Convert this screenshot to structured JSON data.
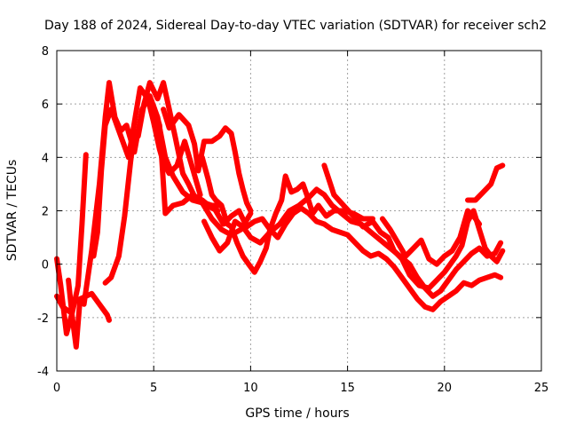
{
  "chart_data": {
    "type": "scatter",
    "title": "Day 188 of 2024, Sidereal Day-to-day VTEC variation (SDTVAR) for receiver sch2",
    "xlabel": "GPS time / hours",
    "ylabel": "SDTVAR / TECUs",
    "xlim": [
      0,
      25
    ],
    "ylim": [
      -4,
      8
    ],
    "xticks": [
      0,
      5,
      10,
      15,
      20,
      25
    ],
    "yticks": [
      -4,
      -2,
      0,
      2,
      4,
      6,
      8
    ],
    "xtick_labels": [
      "0",
      "5",
      "10",
      "15",
      "20",
      "25"
    ],
    "ytick_labels": [
      "-4",
      "-2",
      "0",
      "2",
      "4",
      "6",
      "8"
    ],
    "grid": true,
    "marker": "+",
    "color": "#ff0000",
    "series": [
      {
        "name": "track-1",
        "x": [
          0.0,
          0.3,
          0.7,
          1.0,
          1.4,
          1.8,
          2.2,
          2.5,
          2.7,
          3.0,
          3.3,
          3.6,
          4.0,
          4.4,
          4.8,
          5.2,
          5.6,
          6.0,
          6.5,
          7.0,
          7.5,
          8.0,
          8.5,
          9.0,
          9.5,
          10.0
        ],
        "y": [
          -1.2,
          -1.6,
          -1.8,
          -1.3,
          -1.5,
          0.5,
          3.0,
          5.5,
          6.8,
          5.5,
          5.0,
          5.2,
          4.2,
          5.8,
          6.3,
          5.5,
          4.0,
          3.3,
          2.7,
          2.4,
          2.3,
          1.7,
          1.3,
          1.1,
          1.3,
          1.9
        ]
      },
      {
        "name": "track-2",
        "x": [
          0.0,
          0.2,
          0.5,
          0.8,
          1.1,
          1.3,
          1.5
        ],
        "y": [
          0.2,
          -0.8,
          -2.6,
          -1.8,
          -0.8,
          1.5,
          4.1
        ]
      },
      {
        "name": "track-3",
        "x": [
          0.6,
          0.8,
          1.0,
          1.2,
          1.5,
          1.8,
          2.2,
          2.6,
          2.7
        ],
        "y": [
          -0.6,
          -2.0,
          -3.1,
          -1.3,
          -1.2,
          -1.1,
          -1.5,
          -1.9,
          -2.1
        ]
      },
      {
        "name": "track-4",
        "x": [
          1.9,
          2.1,
          2.3,
          2.5,
          2.8,
          3.1,
          3.4,
          3.7,
          4.0,
          4.3,
          4.7,
          5.0,
          5.3,
          5.5,
          5.8,
          6.2,
          6.6,
          7.0,
          7.4
        ],
        "y": [
          0.3,
          1.2,
          3.5,
          5.2,
          5.8,
          5.2,
          4.6,
          4.0,
          5.3,
          6.6,
          6.2,
          5.3,
          4.3,
          3.8,
          3.4,
          3.7,
          4.6,
          3.6,
          2.6
        ]
      },
      {
        "name": "track-5",
        "x": [
          2.5,
          2.8,
          3.2,
          3.5,
          3.8,
          4.0,
          4.2,
          4.5,
          4.8,
          5.2,
          5.5,
          5.8,
          6.1,
          6.5,
          6.8,
          7.2,
          7.6,
          8.0,
          8.4
        ],
        "y": [
          -0.7,
          -0.5,
          0.3,
          1.8,
          3.8,
          5.0,
          4.8,
          6.0,
          6.8,
          6.2,
          6.8,
          5.8,
          4.8,
          3.4,
          3.0,
          2.4,
          2.3,
          2.2,
          2.2
        ]
      },
      {
        "name": "track-6",
        "x": [
          5.5,
          5.8,
          6.3,
          6.8,
          7.1,
          7.3,
          7.6,
          8.0,
          8.4,
          8.7,
          9.0,
          9.2,
          9.4,
          9.6,
          9.8,
          10.0
        ],
        "y": [
          5.8,
          5.1,
          5.6,
          5.2,
          4.5,
          3.5,
          4.6,
          4.6,
          4.8,
          5.1,
          4.9,
          4.2,
          3.4,
          2.8,
          2.3,
          2.0
        ]
      },
      {
        "name": "track-7",
        "x": [
          5.0,
          5.3,
          5.6,
          6.0,
          6.5,
          7.0,
          7.5,
          8.0,
          8.3
        ],
        "y": [
          5.9,
          5.2,
          1.9,
          2.2,
          2.3,
          2.6,
          2.4,
          2.1,
          2.0
        ]
      },
      {
        "name": "track-8",
        "x": [
          7.5,
          7.8,
          8.0,
          8.2,
          8.5,
          8.8,
          9.0,
          9.3,
          9.6,
          9.9,
          10.2,
          10.5,
          10.8,
          11.0,
          11.3,
          11.6,
          11.8,
          12.1,
          12.4,
          12.7,
          12.9,
          13.2,
          13.5,
          13.9,
          14.3,
          14.8,
          15.3,
          15.8,
          16.3
        ],
        "y": [
          4.0,
          3.2,
          2.6,
          2.4,
          2.2,
          1.5,
          1.4,
          0.8,
          0.3,
          0.0,
          -0.3,
          0.1,
          0.6,
          1.3,
          1.9,
          2.4,
          3.3,
          2.7,
          2.8,
          3.0,
          2.6,
          1.9,
          2.2,
          1.8,
          2.0,
          2.0,
          1.9,
          1.7,
          1.7
        ]
      },
      {
        "name": "track-9",
        "x": [
          7.6,
          8.0,
          8.4,
          8.8,
          9.2,
          9.6,
          10.0,
          10.5,
          11.0,
          11.5,
          12.0,
          12.5,
          13.0,
          13.4,
          13.8,
          14.2,
          14.7,
          15.2,
          15.7,
          16.2,
          16.7,
          17.2,
          17.7,
          18.2,
          18.6,
          19.0,
          19.4,
          19.8,
          20.2,
          20.6,
          21.0,
          21.4,
          21.8,
          22.2,
          22.6,
          22.9
        ],
        "y": [
          1.6,
          1.0,
          0.5,
          0.8,
          1.6,
          1.4,
          1.0,
          0.8,
          1.2,
          1.5,
          2.0,
          2.2,
          2.5,
          2.8,
          2.6,
          2.2,
          1.9,
          1.6,
          1.5,
          1.2,
          0.9,
          0.6,
          0.3,
          0.0,
          -0.5,
          -0.9,
          -1.2,
          -1.0,
          -0.6,
          -0.2,
          0.1,
          0.4,
          0.6,
          0.3,
          0.4,
          0.8
        ]
      },
      {
        "name": "track-10",
        "x": [
          8.2,
          8.6,
          9.0,
          9.4,
          9.8,
          10.2,
          10.6,
          11.0,
          11.4,
          11.8,
          12.2,
          12.6,
          13.0,
          13.4,
          13.8,
          14.2,
          14.6,
          15.0,
          15.4,
          15.8,
          16.2,
          16.6,
          17.0,
          17.4,
          17.8,
          18.2,
          18.6,
          19.0,
          19.4,
          19.8,
          20.2,
          20.6,
          21.0,
          21.4,
          21.8,
          22.2,
          22.6,
          22.9
        ],
        "y": [
          2.0,
          1.5,
          1.8,
          2.0,
          1.4,
          1.6,
          1.7,
          1.3,
          1.0,
          1.5,
          1.9,
          2.1,
          1.9,
          1.6,
          1.5,
          1.3,
          1.2,
          1.1,
          0.8,
          0.5,
          0.3,
          0.4,
          0.2,
          -0.1,
          -0.5,
          -0.9,
          -1.3,
          -1.6,
          -1.7,
          -1.4,
          -1.2,
          -1.0,
          -0.7,
          -0.8,
          -0.6,
          -0.5,
          -0.4,
          -0.5
        ]
      },
      {
        "name": "track-11",
        "x": [
          13.8,
          14.3,
          14.8,
          15.3,
          15.8,
          16.3,
          16.7,
          17.1,
          17.4,
          17.8,
          18.2,
          18.7,
          19.2,
          19.6,
          20.0,
          20.3,
          20.6,
          20.9,
          21.2,
          21.5,
          21.8,
          22.1,
          22.4,
          22.7,
          23.0
        ],
        "y": [
          3.7,
          2.6,
          2.2,
          1.8,
          1.4,
          1.6,
          1.2,
          1.0,
          0.5,
          0.2,
          -0.4,
          -0.8,
          -0.9,
          -0.6,
          -0.3,
          0.0,
          0.3,
          0.7,
          1.6,
          2.0,
          1.3,
          0.6,
          0.3,
          0.1,
          0.5
        ]
      },
      {
        "name": "track-12",
        "x": [
          16.8,
          17.2,
          17.6,
          18.0,
          18.4,
          18.8,
          19.2,
          19.6,
          20.0,
          20.4,
          20.8,
          21.2,
          21.5,
          21.8
        ],
        "y": [
          1.7,
          1.3,
          0.8,
          0.3,
          0.6,
          0.9,
          0.2,
          0.0,
          0.3,
          0.5,
          1.0,
          2.0,
          1.8,
          1.5
        ]
      },
      {
        "name": "track-13",
        "x": [
          21.2,
          21.6,
          22.0,
          22.4,
          22.7,
          23.0
        ],
        "y": [
          2.4,
          2.4,
          2.7,
          3.0,
          3.6,
          3.7
        ]
      }
    ]
  }
}
